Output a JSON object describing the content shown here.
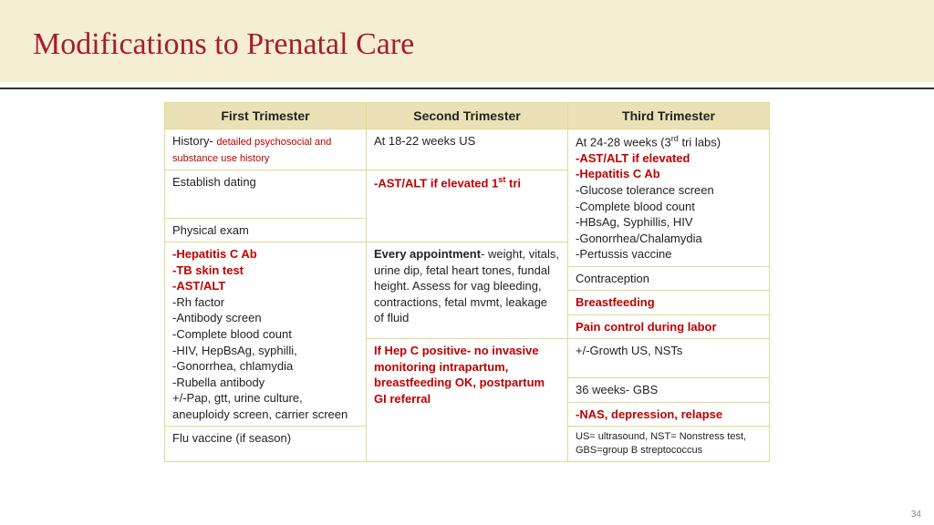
{
  "title": "Modifications to Prenatal Care",
  "page_number": "34",
  "headers": {
    "c1": "First Trimester",
    "c2": "Second Trimester",
    "c3": "Third Trimester"
  },
  "col1": {
    "r1_a": "History- ",
    "r1_b": "detailed psychosocial and substance use history",
    "r2": "Establish dating",
    "r3": "Physical exam",
    "r4_a": "-Hepatitis C Ab",
    "r4_b": "-TB skin test",
    "r4_c": "-AST/ALT",
    "r4_rest": "-Rh factor\n-Antibody screen\n-Complete blood count\n-HIV, HepBsAg, syphilli,\n-Gonorrhea, chlamydia\n-Rubella antibody\n+/-Pap, gtt, urine culture, aneuploidy screen, carrier screen",
    "r5": "Flu vaccine (if season)"
  },
  "col2": {
    "r1": "At 18-22 weeks US",
    "r2_a": "-AST/ALT if elevated 1",
    "r2_b": " tri",
    "r4_a": "Every appointment",
    "r4_b": "- weight, vitals, urine dip, fetal heart tones, fundal height.  Assess for vag bleeding, contractions, fetal mvmt, leakage of fluid",
    "r5": "If Hep C positive- no invasive monitoring intrapartum, breastfeeding OK, postpartum GI referral"
  },
  "col3": {
    "r1_a": "At 24-28 weeks (3",
    "r1_b": " tri labs)",
    "r1_c": "-AST/ALT if elevated",
    "r1_d": "-Hepatitis C Ab",
    "r1_e": "-Glucose tolerance screen\n-Complete blood count\n-HBsAg, Syphillis, HIV\n-Gonorrhea/Chalamydia\n-Pertussis vaccine",
    "r2": "Contraception",
    "r3": "Breastfeeding",
    "r4": "Pain control during labor",
    "r5": "+/-Growth US, NSTs",
    "r6": "36 weeks- GBS",
    "r7": "-NAS, depression, relapse",
    "r8": "US= ultrasound,   NST= Nonstress test, GBS=group B streptococcus"
  }
}
